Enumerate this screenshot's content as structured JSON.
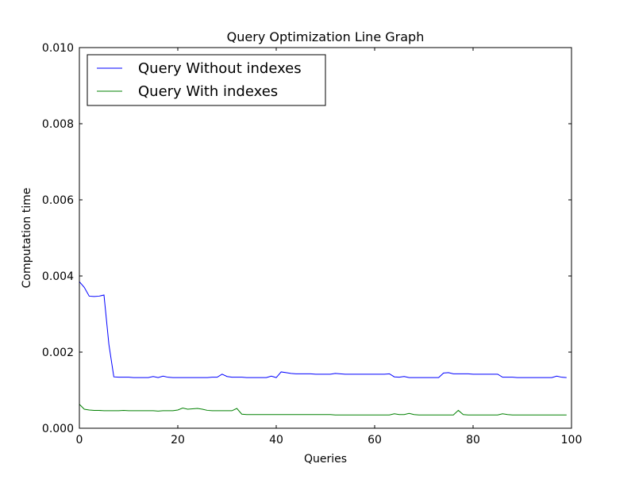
{
  "chart_data": {
    "type": "line",
    "title": "Query Optimization Line Graph",
    "xlabel": "Queries",
    "ylabel": "Computation time",
    "xlim": [
      0,
      100
    ],
    "ylim": [
      0,
      0.01
    ],
    "xticks": [
      0,
      20,
      40,
      60,
      80,
      100
    ],
    "xtick_labels": [
      "0",
      "20",
      "40",
      "60",
      "80",
      "100"
    ],
    "yticks": [
      0,
      0.002,
      0.004,
      0.006,
      0.008,
      0.01
    ],
    "ytick_labels": [
      "0.000",
      "0.002",
      "0.004",
      "0.006",
      "0.008",
      "0.010"
    ],
    "grid": false,
    "legend_position": "top-left",
    "series": [
      {
        "name": "Query Without indexes",
        "color": "#0000ff",
        "x": [
          0,
          1,
          2,
          3,
          4,
          5,
          6,
          7,
          8,
          9,
          10,
          11,
          12,
          13,
          14,
          15,
          16,
          17,
          18,
          19,
          20,
          21,
          22,
          23,
          24,
          25,
          26,
          27,
          28,
          29,
          30,
          31,
          32,
          33,
          34,
          35,
          36,
          37,
          38,
          39,
          40,
          41,
          42,
          43,
          44,
          45,
          46,
          47,
          48,
          49,
          50,
          51,
          52,
          53,
          54,
          55,
          56,
          57,
          58,
          59,
          60,
          61,
          62,
          63,
          64,
          65,
          66,
          67,
          68,
          69,
          70,
          71,
          72,
          73,
          74,
          75,
          76,
          77,
          78,
          79,
          80,
          81,
          82,
          83,
          84,
          85,
          86,
          87,
          88,
          89,
          90,
          91,
          92,
          93,
          94,
          95,
          96,
          97,
          98,
          99
        ],
        "y": [
          0.00385,
          0.0037,
          0.00347,
          0.00346,
          0.00347,
          0.0035,
          0.0022,
          0.00135,
          0.00134,
          0.00134,
          0.00134,
          0.00133,
          0.00133,
          0.00133,
          0.00133,
          0.00136,
          0.00133,
          0.00137,
          0.00134,
          0.00133,
          0.00133,
          0.00133,
          0.00133,
          0.00133,
          0.00133,
          0.00133,
          0.00133,
          0.00134,
          0.00134,
          0.00142,
          0.00136,
          0.00134,
          0.00134,
          0.00134,
          0.00133,
          0.00133,
          0.00133,
          0.00133,
          0.00133,
          0.00137,
          0.00133,
          0.00148,
          0.00146,
          0.00144,
          0.00143,
          0.00143,
          0.00143,
          0.00143,
          0.00142,
          0.00142,
          0.00142,
          0.00142,
          0.00144,
          0.00143,
          0.00142,
          0.00142,
          0.00142,
          0.00142,
          0.00142,
          0.00142,
          0.00142,
          0.00142,
          0.00142,
          0.00143,
          0.00135,
          0.00134,
          0.00136,
          0.00133,
          0.00133,
          0.00133,
          0.00133,
          0.00133,
          0.00133,
          0.00133,
          0.00145,
          0.00146,
          0.00143,
          0.00143,
          0.00143,
          0.00143,
          0.00142,
          0.00142,
          0.00142,
          0.00142,
          0.00142,
          0.00142,
          0.00134,
          0.00134,
          0.00134,
          0.00133,
          0.00133,
          0.00133,
          0.00133,
          0.00133,
          0.00133,
          0.00133,
          0.00133,
          0.00137,
          0.00134,
          0.00133
        ]
      },
      {
        "name": "Query With indexes",
        "color": "#008000",
        "x": [
          0,
          1,
          2,
          3,
          4,
          5,
          6,
          7,
          8,
          9,
          10,
          11,
          12,
          13,
          14,
          15,
          16,
          17,
          18,
          19,
          20,
          21,
          22,
          23,
          24,
          25,
          26,
          27,
          28,
          29,
          30,
          31,
          32,
          33,
          34,
          35,
          36,
          37,
          38,
          39,
          40,
          41,
          42,
          43,
          44,
          45,
          46,
          47,
          48,
          49,
          50,
          51,
          52,
          53,
          54,
          55,
          56,
          57,
          58,
          59,
          60,
          61,
          62,
          63,
          64,
          65,
          66,
          67,
          68,
          69,
          70,
          71,
          72,
          73,
          74,
          75,
          76,
          77,
          78,
          79,
          80,
          81,
          82,
          83,
          84,
          85,
          86,
          87,
          88,
          89,
          90,
          91,
          92,
          93,
          94,
          95,
          96,
          97,
          98,
          99
        ],
        "y": [
          0.00063,
          0.0005,
          0.00048,
          0.00047,
          0.00047,
          0.00046,
          0.00046,
          0.00046,
          0.00046,
          0.00047,
          0.00046,
          0.00046,
          0.00046,
          0.00046,
          0.00046,
          0.00046,
          0.00045,
          0.00046,
          0.00046,
          0.00046,
          0.00048,
          0.00053,
          0.0005,
          0.00051,
          0.00052,
          0.0005,
          0.00047,
          0.00046,
          0.00046,
          0.00046,
          0.00046,
          0.00046,
          0.00052,
          0.00037,
          0.00036,
          0.00036,
          0.00036,
          0.00036,
          0.00036,
          0.00036,
          0.00036,
          0.00036,
          0.00036,
          0.00036,
          0.00036,
          0.00036,
          0.00036,
          0.00036,
          0.00036,
          0.00036,
          0.00036,
          0.00036,
          0.00035,
          0.00035,
          0.00035,
          0.00035,
          0.00035,
          0.00035,
          0.00035,
          0.00035,
          0.00035,
          0.00035,
          0.00035,
          0.00035,
          0.00038,
          0.00036,
          0.00036,
          0.00039,
          0.00036,
          0.00035,
          0.00035,
          0.00035,
          0.00035,
          0.00035,
          0.00035,
          0.00035,
          0.00035,
          0.00047,
          0.00036,
          0.00035,
          0.00035,
          0.00035,
          0.00035,
          0.00035,
          0.00035,
          0.00035,
          0.00038,
          0.00036,
          0.00035,
          0.00035,
          0.00035,
          0.00035,
          0.00035,
          0.00035,
          0.00035,
          0.00035,
          0.00035,
          0.00035,
          0.00035,
          0.00035
        ]
      }
    ]
  }
}
